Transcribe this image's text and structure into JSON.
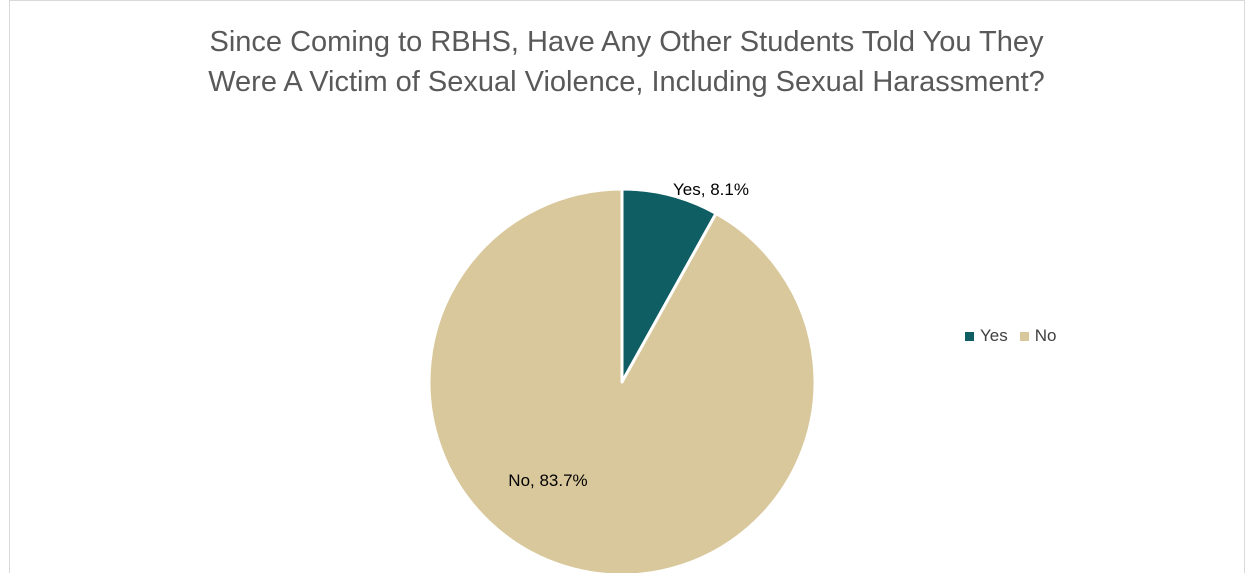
{
  "chart_data": {
    "type": "pie",
    "title_lines": [
      "Since Coming to RBHS, Have Any Other Students Told You They",
      "Were A Victim of Sexual Violence, Including Sexual Harassment?"
    ],
    "slices": [
      {
        "name": "Yes",
        "value": 8.1,
        "label": "Yes, 8.1%",
        "color": "#0f5e63"
      },
      {
        "name": "No",
        "value": 83.7,
        "label": "No, 83.7%",
        "color": "#d9c89b"
      }
    ],
    "legend": {
      "placement": "right",
      "entries": [
        "Yes",
        "No"
      ]
    }
  }
}
